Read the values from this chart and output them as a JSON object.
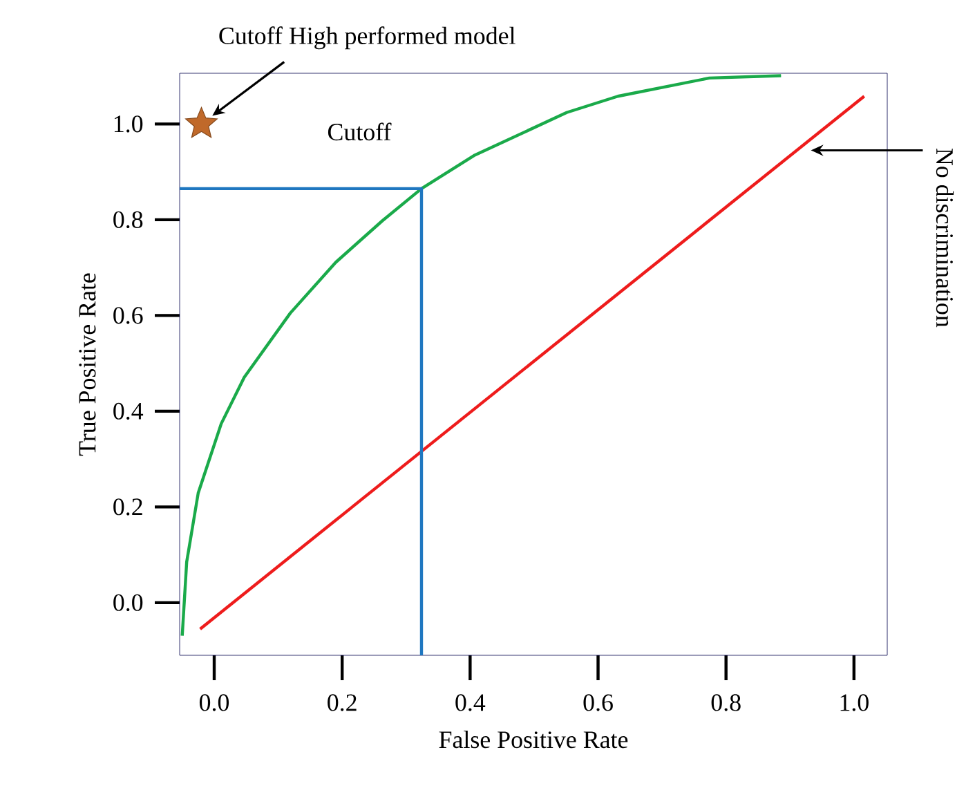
{
  "chart_data": {
    "type": "line",
    "xlabel": "False Positive Rate",
    "ylabel": "True Positive Rate",
    "xlim": [
      -0.054,
      1.052
    ],
    "ylim": [
      -0.11,
      1.106
    ],
    "xticks": [
      {
        "value": 0,
        "label": "0.0"
      },
      {
        "value": 0.2,
        "label": "0.2"
      },
      {
        "value": 0.4,
        "label": "0.4"
      },
      {
        "value": 0.6,
        "label": "0.6"
      },
      {
        "value": 0.8,
        "label": "0.8"
      },
      {
        "value": 1,
        "label": "1.0"
      }
    ],
    "yticks": [
      {
        "value": 0,
        "label": "0.0"
      },
      {
        "value": 0.2,
        "label": "0.2"
      },
      {
        "value": 0.4,
        "label": "0.4"
      },
      {
        "value": 0.6,
        "label": "0.6"
      },
      {
        "value": 0.8,
        "label": "0.8"
      },
      {
        "value": 1,
        "label": "1.0"
      }
    ],
    "marker": "none",
    "line_style": "solid",
    "series": [
      {
        "color": "#1aaa4a",
        "x": [
          -0.05,
          -0.043,
          -0.025,
          0.011,
          0.047,
          0.119,
          0.19,
          0.263,
          0.324,
          0.406,
          0.551,
          0.631,
          0.774,
          0.886
        ],
        "values": [
          -0.069,
          0.085,
          0.229,
          0.374,
          0.471,
          0.605,
          0.711,
          0.798,
          0.865,
          0.934,
          1.024,
          1.058,
          1.096,
          1.101
        ]
      },
      {
        "color": "#ee1c1c",
        "x": [
          -0.022,
          1.016
        ],
        "values": [
          -0.055,
          1.058
        ]
      },
      {
        "color": "#1f77c0",
        "x": [
          -0.054,
          0.324,
          0.324
        ],
        "values": [
          0.865,
          0.865,
          -0.11
        ]
      },
      {
        "type": "scatter",
        "marker": "star",
        "color": "#c0692a",
        "x": [
          -0.02
        ],
        "values": [
          1.0
        ]
      }
    ],
    "annotations": [
      {
        "text": "Cutoff High performed model",
        "x": -0.003,
        "y": 1.017
      },
      {
        "text": "Cutoff",
        "x": 0.324,
        "y": 0.865
      },
      "No discrimination"
    ]
  }
}
